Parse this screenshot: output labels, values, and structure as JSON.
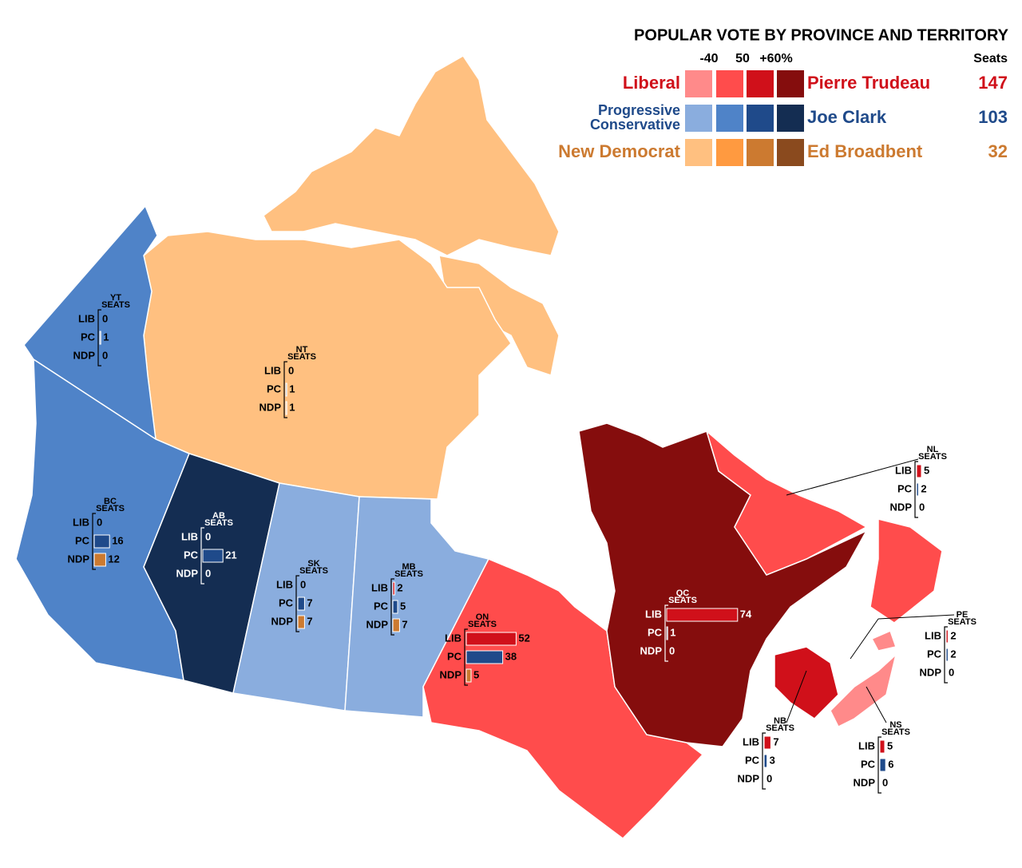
{
  "legend": {
    "title": "POPULAR VOTE BY PROVINCE AND TERRITORY",
    "scale": [
      "-40",
      "50",
      "+60%"
    ],
    "seats_header": "Seats",
    "parties": [
      {
        "name_lines": [
          "Liberal"
        ],
        "leader": "Pierre Trudeau",
        "seats": 147,
        "color": "#d0101a",
        "shades": [
          "#ff8a8a",
          "#ff4c4c",
          "#d0101a",
          "#850d0d"
        ]
      },
      {
        "name_lines": [
          "Progressive",
          "Conservative"
        ],
        "leader": "Joe Clark",
        "seats": 103,
        "color": "#1f4a8a",
        "shades": [
          "#8aadde",
          "#4f83c8",
          "#1f4a8a",
          "#142d52"
        ]
      },
      {
        "name_lines": [
          "New Democrat"
        ],
        "leader": "Ed Broadbent",
        "seats": 32,
        "color": "#cc7a30",
        "shades": [
          "#ffc080",
          "#ff9a40",
          "#cc7a30",
          "#8a4a1e"
        ]
      }
    ]
  },
  "row_labels": [
    "LIB",
    "PC",
    "NDP"
  ],
  "seats_label": "SEATS",
  "bar_colors": [
    "#d0101a",
    "#1f4a8a",
    "#cc7a30"
  ],
  "regions": [
    {
      "code": "YT",
      "color": "#4f83c8",
      "seats": [
        0,
        1,
        0
      ]
    },
    {
      "code": "NT",
      "color": "#ffc080",
      "seats": [
        0,
        1,
        1
      ]
    },
    {
      "code": "BC",
      "color": "#4f83c8",
      "seats": [
        0,
        16,
        12
      ]
    },
    {
      "code": "AB",
      "color": "#142d52",
      "seats": [
        0,
        21,
        0
      ]
    },
    {
      "code": "SK",
      "color": "#8aadde",
      "seats": [
        0,
        7,
        7
      ]
    },
    {
      "code": "MB",
      "color": "#8aadde",
      "seats": [
        2,
        5,
        7
      ]
    },
    {
      "code": "ON",
      "color": "#ff4c4c",
      "seats": [
        52,
        38,
        5
      ]
    },
    {
      "code": "QC",
      "color": "#850d0d",
      "seats": [
        74,
        1,
        0
      ]
    },
    {
      "code": "NL",
      "color": "#ff4c4c",
      "seats": [
        5,
        2,
        0
      ]
    },
    {
      "code": "PE",
      "color": "#ff8a8a",
      "seats": [
        2,
        2,
        0
      ]
    },
    {
      "code": "NB",
      "color": "#d0101a",
      "seats": [
        7,
        3,
        0
      ]
    },
    {
      "code": "NS",
      "color": "#ff8a8a",
      "seats": [
        5,
        6,
        0
      ]
    }
  ]
}
